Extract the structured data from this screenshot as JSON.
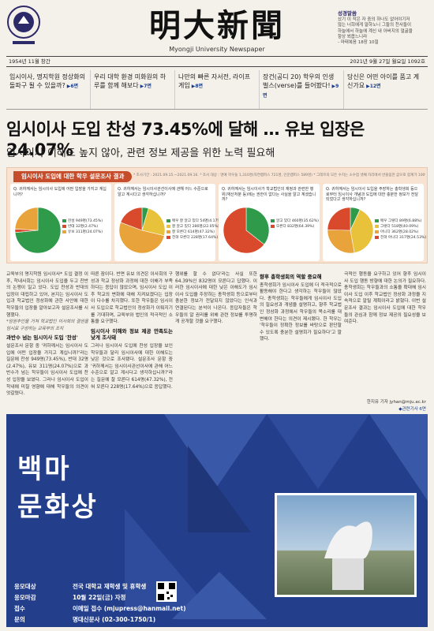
{
  "header": {
    "masthead": "明大新聞",
    "subname": "Myongji University Newspaper",
    "motto_title": "성경말씀",
    "motto_lines": [
      "샀기 이 작은 자 중의 하나도 없어야기저",
      "않는 너희에게 말하노니 그들의 천사들이",
      "하늘에서 하늘에 계신 내 아버지의 얼굴을",
      "항상 뵈옵느니라",
      "- 마태복음 18장 10절"
    ],
    "dateline_left": "1954년 11월 창간",
    "dateline_right": "2021년 9월 27일 월요일    1092호"
  },
  "nav": [
    {
      "text": "임시이사, 명지학원 정상화의 돌파구 될 수 있을까?",
      "page": "▶6면"
    },
    {
      "text": "우리 대학 환경 미화원의 하루를 함께 해보다",
      "page": "▶7면"
    },
    {
      "text": "나만의 빠른 자서전, 라이프 게임",
      "page": "▶8면"
    },
    {
      "text": "장건(공디 20) 학우의 인생 벌스(verse)를 들어봤다!",
      "page": "▶9면"
    },
    {
      "text": "당신은 어떤 아이를 품고 계신가요",
      "page": "▶12면"
    }
  ],
  "headline": "임시이사 도입 찬성 73.45%에 달해 … 유보 입장은 24.07%",
  "subhead": "임시이사 이해도 높지 않아, 관련 정보 제공을 위한 노력 필요해",
  "survey": {
    "title": "임시이사 도입에 대한 학우 설문조사 결과",
    "notes": "* 조사기간 : 2021.09.15.~2021.09.16.   * 조사 대상 : 명예 학우들 1,310명(자연캠퍼스 721명, 인문캠퍼스 589명)   * 그래프의 모든 수치는 소수점 셋째 자리에서 반올림한 값으로 합계가 100%가 아닐 수 있습니다."
  },
  "chart_data": [
    {
      "type": "pie",
      "title": "Q. 귀하께서는 임시이사 도입에 어떤 입장을 가지고 계십니까?",
      "categories": [
        "찬성 949명(73.45%)",
        "반대 32명(2.47%)",
        "유보 311명(24.07%)"
      ],
      "values": [
        73.45,
        2.47,
        24.07
      ],
      "colors": [
        "#2e9a4a",
        "#d94a2c",
        "#e8a43a"
      ]
    },
    {
      "type": "pie",
      "title": "Q. 귀하께서는 임시이사관선이사에 관해 어느 수준으로 알고 계시다고 생각하십니까?",
      "categories": [
        "매우 잘 알고 있다 54명(4.17%)",
        "잘 알고 있다 286명(22.05%)",
        "잘 모른다 614명(47.32%)",
        "전혀 모른다 228명(17.64%)"
      ],
      "values": [
        4.17,
        22.05,
        47.32,
        17.64
      ],
      "colors": [
        "#2e9a4a",
        "#e8c23a",
        "#e8a43a",
        "#d94a2c"
      ]
    },
    {
      "type": "pie",
      "title": "Q. 귀하께서는 임시이사가 학교법인의 재정과 관련한 행위(재산처분 등)에는 권한이 없다는 사실을 알고 계셨습니까?",
      "categories": [
        "알고 있다 460명(35.62%)",
        "모른다 832명(64.39%)"
      ],
      "values": [
        35.62,
        64.39
      ],
      "colors": [
        "#2e9a4a",
        "#d94a2c"
      ]
    },
    {
      "type": "pie",
      "title": "Q. 귀하께서는 임시이사 도입을 주장하는 총학생회 등으로부터 임시이사 개념과 도입에 대한 충분한 정보가 전달되었다고 생각하십니까?",
      "categories": [
        "매우 그렇다 89명(6.88%)",
        "그렇다 518명(40.09%)",
        "아니다 362명(28.02%)",
        "전혀 아니다 317명(24.53%)"
      ],
      "values": [
        6.88,
        40.09,
        28.02,
        24.53
      ],
      "colors": [
        "#2e9a4a",
        "#e8c23a",
        "#e8a43a",
        "#d94a2c"
      ]
    }
  ],
  "columns": {
    "c1_intro": "교육부의 명지학원 임시이사* 도입 결정 이후, 학내사회는 임시이사 도입을 두고 찬반의 논쟁이 일고 있다. 도입 찬성과 반대의 입장이 대립하고 있어, 본지는 임시이사 도입과 학교법인 정상화에 관한 사안에 대한 학우들의 입장을 알아보고자 설문조사를 시행했다.",
    "c1_note": "*임원추인을 거쳐 학교법인 이사회의 결원을 임시로 구성하는 교육부의 조치",
    "c1_h": "과반수 넘는 임시이사 도입 '찬성'",
    "c1_body": "설문조사 문항 중 '귀하께서는 임시이사 도입에 어떤 입장을 가지고 계십니까?'라는 질문에 찬성 949명(73.45%), 반대 32명(2.47%), 유보 311명(24.07%)으로 과반수가 넘는 학우들이 임시이사 도입에 찬성 입장을 보였다. 그러나 임시이사 도입이 학내에 미칠 영향에 대해 학우들의 의견이 엇갈렸다.",
    "c2_body": "따른 잠이다. 반면 유보 의견은 이사회의 구성과 학교 정상화 과정에 대한 이해가 부족하다는 응답이 많았으며, 임시이사 도입 이후 학교의 변화에 대해 지켜보겠다는 입장이 다수를 차지했다. 또한 학우들은 임시이사 도입으로 학교법인의 정상화가 이뤄지기를 기대하며, 교육부와 법인의 적극적인 소통을 요구했다.",
    "c2_h": "임시이사 이해와 정보 제공 만족도는 낮게 조사돼",
    "c2_body2": "그러나 임시이사 도입에 찬성 입장을 보인 학우들과 달리 임시이사에 대한 이해도는 낮은 것으로 조사됐다. 설문조사 문항 중 '귀하께서는 임시이사관선이사에 관해 어느 수준으로 알고 계시다고 생각하십니까?'라는 질문에 잘 모른다 614명(47.32%), 전혀 모른다 228명(17.64%)으로 응답했다.",
    "c3_body": "행위를 할 수 없다'라는 사실 또한 64.39%인 832명이 모른다고 답했다. 이러한 임시이사에 대한 낮은 이해도가 임시이사 도입을 주장하는 총학생회 등으로부터 충분한 정보가 전달되지 않았다는 인식과 연결된다는 분석이 나온다. 응답자들은 학우들의 알 권리를 위해 관련 정보를 투명하게 공개할 것을 요구했다.",
    "c4_h": "향후 총학생회의 역할 중요해",
    "c4_body": "총학생회가 임시이사 도입에 더 적극적으로 활동해야 한다고 생각하는 학우들이 많았다. 총학생회는 학우들에게 임시이사 도입의 필요성과 개념을 설명하고, 향후 학교법인 정상화 과정에서 학우들의 목소리를 대변해야 한다는 의견이 제시됐다. 한 학우는 '학우들이 정확한 정보를 바탕으로 판단할 수 있도록 충분한 설명회가 필요하다'고 말했다.",
    "c5_body": "극적인 행동을 요구하고 있어 향후 임시이사 도입 행동 방향에 대한 논의가 필요하다. 총학생회는 학우들과의 소통을 확대해 임시이사 도입 이후 학교법인 정상화 과정을 지속적으로 알릴 계획이라고 밝혔다. 이번 설문조사 결과는 임시이사 도입에 대한 학우들의 관심과 함께 정보 제공의 필요성을 보여준다."
  },
  "byline": "한지유 기자 jyhan@mju.ac.kr",
  "related": "◆관련기사 6면",
  "ad": {
    "title_line1": "백마",
    "title_line2": "문화상",
    "rows": [
      {
        "k": "응모대상",
        "v": "전국 대학교 재학생 및 휴학생"
      },
      {
        "k": "응모마감",
        "v": "10월 22일(금) 자정"
      },
      {
        "k": "접수",
        "v": "이메일 접수 (mjupress@hanmail.net)"
      },
      {
        "k": "문의",
        "v": "명대신문사 (02-300-1750/1)"
      }
    ]
  }
}
